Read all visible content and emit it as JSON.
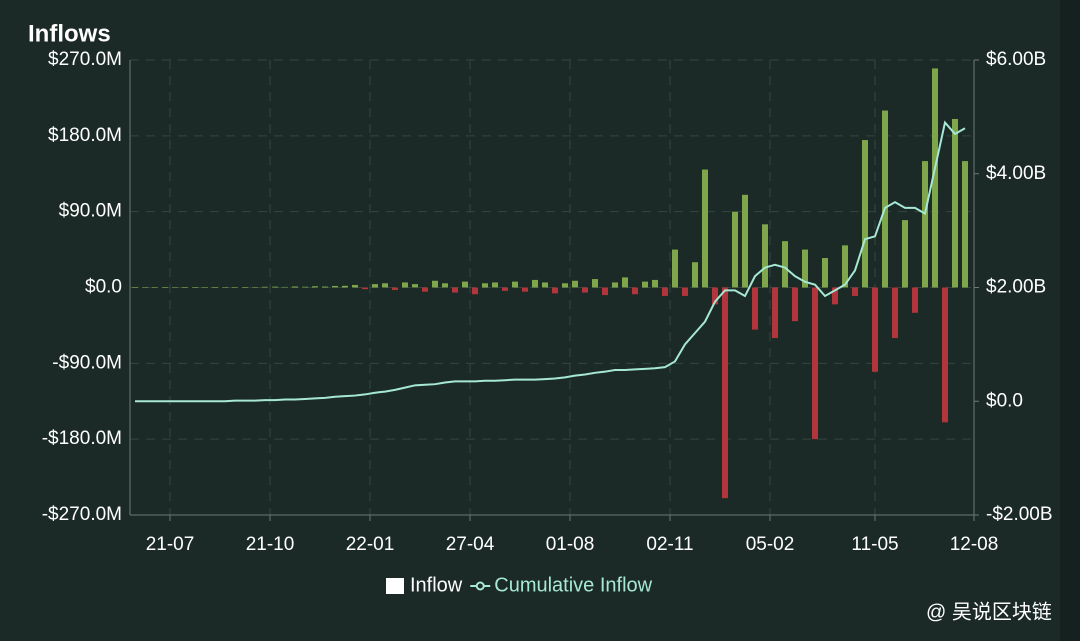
{
  "chart_data": {
    "type": "bar",
    "title": "Inflows",
    "x": [
      0,
      1,
      2,
      3,
      4,
      5,
      6,
      7,
      8,
      9,
      10,
      11,
      12,
      13,
      14,
      15,
      16,
      17,
      18,
      19,
      20,
      21,
      22,
      23,
      24,
      25,
      26,
      27,
      28,
      29,
      30,
      31,
      32,
      33,
      34,
      35,
      36,
      37,
      38,
      39,
      40,
      41,
      42,
      43,
      44,
      45,
      46,
      47,
      48,
      49,
      50,
      51,
      52,
      53,
      54,
      55,
      56,
      57,
      58,
      59,
      60,
      61,
      62,
      63,
      64,
      65,
      66,
      67,
      68,
      69,
      70,
      71,
      72,
      73,
      74,
      75,
      76,
      77,
      78,
      79,
      80,
      81,
      82,
      83
    ],
    "xlim": [
      -0.5,
      83.9
    ],
    "xticks": [
      {
        "value": 3.5,
        "label": "21-07"
      },
      {
        "value": 13.5,
        "label": "21-10"
      },
      {
        "value": 23.5,
        "label": "22-01"
      },
      {
        "value": 33.5,
        "label": "27-04"
      },
      {
        "value": 43.5,
        "label": "01-08"
      },
      {
        "value": 53.5,
        "label": "02-11"
      },
      {
        "value": 63.5,
        "label": "05-02"
      },
      {
        "value": 74,
        "label": "11-05"
      },
      {
        "value": 83.9,
        "label": "12-08"
      }
    ],
    "ylim": [
      -270,
      270
    ],
    "yticks": [
      {
        "value": 270,
        "label": "$270.0M"
      },
      {
        "value": 180,
        "label": "$180.0M"
      },
      {
        "value": 90,
        "label": "$90.0M"
      },
      {
        "value": 0,
        "label": "$0.0"
      },
      {
        "value": -90,
        "label": "-$90.0M"
      },
      {
        "value": -180,
        "label": "-$180.0M"
      },
      {
        "value": -270,
        "label": "-$270.0M"
      }
    ],
    "y2lim": [
      -2,
      6
    ],
    "y2ticks": [
      {
        "value": 6,
        "label": "$6.00B"
      },
      {
        "value": 4,
        "label": "$4.00B"
      },
      {
        "value": 2,
        "label": "$2.00B"
      },
      {
        "value": 0,
        "label": "$0.0"
      },
      {
        "value": -2,
        "label": "-$2.00B"
      }
    ],
    "grid": true,
    "series": [
      {
        "name": "Inflow",
        "type": "bar",
        "color": "#7fa64a",
        "negative_color": "#b0363c",
        "values": [
          0.3,
          0.2,
          0.5,
          0.3,
          0.4,
          0.2,
          0.3,
          0.5,
          0.4,
          0.3,
          0.6,
          0.5,
          0.4,
          0.8,
          1,
          0.7,
          1.2,
          0.9,
          1.5,
          1.1,
          1.8,
          2,
          3,
          -2,
          4,
          5,
          -3,
          6,
          4,
          -5,
          8,
          5,
          -6,
          7,
          -8,
          5,
          6,
          -4,
          7,
          -5,
          9,
          6,
          -7,
          5,
          8,
          -6,
          10,
          -9,
          6,
          12,
          -8,
          7,
          9,
          -10,
          45,
          -10,
          30,
          140,
          -20,
          -250,
          90,
          110,
          -50,
          75,
          -60,
          55,
          -40,
          45,
          -180,
          35,
          -20,
          50,
          -10,
          175,
          -100,
          210,
          -60,
          80,
          -30,
          150,
          260,
          -160,
          200,
          150
        ]
      },
      {
        "name": "Cumulative Inflow",
        "type": "line",
        "axis": "y2",
        "color": "#a6e8d4",
        "values": [
          0,
          0,
          0,
          0,
          0,
          0,
          0,
          0,
          0,
          0,
          0.01,
          0.01,
          0.01,
          0.02,
          0.02,
          0.03,
          0.03,
          0.04,
          0.05,
          0.06,
          0.08,
          0.09,
          0.1,
          0.12,
          0.15,
          0.17,
          0.2,
          0.24,
          0.28,
          0.29,
          0.3,
          0.33,
          0.35,
          0.35,
          0.35,
          0.36,
          0.36,
          0.37,
          0.38,
          0.38,
          0.38,
          0.39,
          0.4,
          0.42,
          0.45,
          0.47,
          0.5,
          0.52,
          0.55,
          0.55,
          0.56,
          0.57,
          0.58,
          0.6,
          0.7,
          1,
          1.2,
          1.4,
          1.75,
          1.95,
          1.95,
          1.85,
          2.2,
          2.35,
          2.4,
          2.35,
          2.2,
          2.1,
          2.05,
          1.85,
          1.95,
          2.05,
          2.3,
          2.85,
          2.9,
          3.4,
          3.5,
          3.4,
          3.4,
          3.3,
          4.1,
          4.9,
          4.7,
          4.8
        ]
      }
    ],
    "watermark": "@ 吴说区块链"
  }
}
